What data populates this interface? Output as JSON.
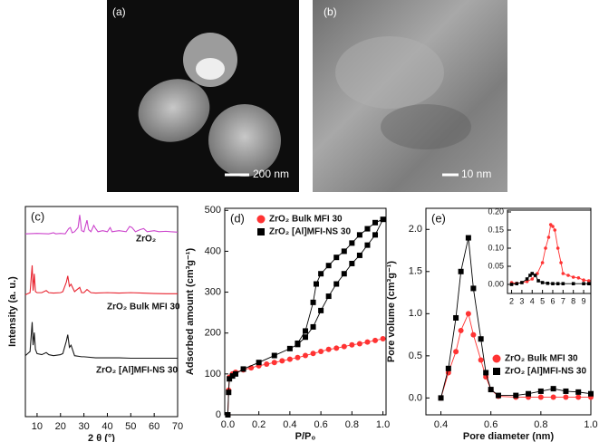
{
  "images": [
    {
      "panel_label": "(a)",
      "scale_bar": "200 nm"
    },
    {
      "panel_label": "(b)",
      "scale_bar": "10 nm"
    }
  ],
  "chart_data": [
    {
      "type": "line",
      "panel_label": "(c)",
      "xlabel": "2 θ (°)",
      "ylabel": "Intensity (a. u.)",
      "xlim": [
        5,
        70
      ],
      "ylim": [
        0,
        10
      ],
      "xticks": [
        10,
        20,
        30,
        40,
        50,
        60,
        70
      ],
      "series": [
        {
          "name": "ZrO₂",
          "color": "#cc44cc",
          "x": [
            5,
            10,
            15,
            17,
            18,
            20,
            22,
            23.5,
            24.2,
            25,
            26,
            27.5,
            28.2,
            29,
            30,
            31.3,
            32,
            33,
            34.2,
            35,
            36,
            38,
            40,
            41.2,
            42,
            45,
            48,
            49.5,
            50.5,
            52,
            54,
            55.5,
            57,
            60,
            62,
            65,
            67,
            70
          ],
          "values": [
            8.7,
            8.72,
            8.7,
            8.75,
            8.7,
            8.72,
            8.7,
            8.95,
            9.0,
            8.75,
            8.8,
            9.0,
            9.6,
            8.85,
            8.8,
            9.35,
            8.9,
            8.8,
            9.1,
            8.95,
            8.8,
            8.85,
            8.8,
            9.0,
            8.8,
            8.85,
            8.8,
            9.05,
            9.0,
            8.8,
            8.9,
            8.95,
            8.8,
            8.85,
            8.8,
            8.82,
            8.8,
            8.78
          ]
        },
        {
          "name": "ZrO₂ Bulk MFI 30",
          "color": "#e8232f",
          "x": [
            5,
            6,
            7,
            7.9,
            8.3,
            8.8,
            9.3,
            10,
            12,
            13.9,
            15,
            17,
            20,
            21,
            22.5,
            23.1,
            23.8,
            24.5,
            26,
            28.2,
            29,
            30,
            31.3,
            33,
            35,
            40,
            45,
            50,
            55,
            60,
            65,
            70
          ],
          "values": [
            5.8,
            5.85,
            5.9,
            7.2,
            6.0,
            6.8,
            5.95,
            5.9,
            5.9,
            6.0,
            5.9,
            5.88,
            5.9,
            5.95,
            6.4,
            6.7,
            6.2,
            6.3,
            5.95,
            6.15,
            5.9,
            5.9,
            6.05,
            5.9,
            5.88,
            5.9,
            5.88,
            5.9,
            5.88,
            5.86,
            5.85,
            5.85
          ]
        },
        {
          "name": "ZrO₂ [Al]MFI-NS 30",
          "color": "#1a1a1a",
          "x": [
            5,
            6,
            7,
            7.9,
            8.3,
            8.8,
            9.3,
            10,
            12,
            13.9,
            15,
            17,
            20,
            21,
            22.5,
            23.1,
            23.8,
            24.5,
            26,
            29,
            30,
            35,
            40,
            45,
            50,
            55,
            60,
            65,
            70
          ],
          "values": [
            2.9,
            3.0,
            3.1,
            4.5,
            3.4,
            4.0,
            3.2,
            3.0,
            2.95,
            3.05,
            2.95,
            2.9,
            2.95,
            3.0,
            3.6,
            3.9,
            3.3,
            3.4,
            2.9,
            2.85,
            2.85,
            2.8,
            2.8,
            2.8,
            2.78,
            2.78,
            2.78,
            2.78,
            2.78
          ]
        }
      ]
    },
    {
      "type": "line",
      "panel_label": "(d)",
      "xlabel": "P/P₀",
      "ylabel": "Adsorbed amount (cm³g⁻¹)",
      "xlim": [
        -0.02,
        1.02
      ],
      "ylim": [
        0,
        505
      ],
      "legend": "upper left",
      "xticks": [
        {
          "value": 0,
          "label": "0.0"
        },
        0.2,
        0.4,
        0.6,
        0.8,
        {
          "value": 1,
          "label": "1.0"
        }
      ],
      "yticks": [
        0,
        100,
        200,
        300,
        400,
        500
      ],
      "series": [
        {
          "name": "ZrO₂ Bulk MFI 30",
          "color": "#ff3333",
          "marker": "circle",
          "x": [
            0,
            0.005,
            0.01,
            0.03,
            0.05,
            0.1,
            0.15,
            0.2,
            0.25,
            0.3,
            0.35,
            0.4,
            0.45,
            0.5,
            0.55,
            0.6,
            0.65,
            0.7,
            0.75,
            0.8,
            0.85,
            0.9,
            0.95,
            1.0
          ],
          "values": [
            0,
            60,
            92,
            100,
            104,
            110,
            115,
            120,
            124,
            128,
            132,
            136,
            140,
            145,
            150,
            155,
            160,
            163,
            167,
            171,
            174,
            178,
            182,
            186
          ]
        },
        {
          "name": "ZrO₂ [Al]MFI-NS 30",
          "color": "#000000",
          "marker": "square",
          "x": [
            0,
            0.005,
            0.01,
            0.03,
            0.05,
            0.1,
            0.2,
            0.3,
            0.4,
            0.45,
            0.5,
            0.55,
            0.6,
            0.65,
            0.7,
            0.75,
            0.8,
            0.85,
            0.9,
            0.95,
            1.0,
            0.95,
            0.9,
            0.85,
            0.8,
            0.75,
            0.7,
            0.65,
            0.6,
            0.57,
            0.55,
            0.5,
            0.45
          ],
          "values": [
            0,
            55,
            88,
            95,
            100,
            112,
            128,
            145,
            162,
            172,
            190,
            215,
            255,
            290,
            320,
            345,
            370,
            390,
            415,
            440,
            478,
            470,
            455,
            440,
            420,
            400,
            385,
            365,
            345,
            320,
            275,
            205,
            175
          ]
        }
      ]
    },
    {
      "type": "line",
      "panel_label": "(e)",
      "xlabel": "Pore diameter (nm)",
      "ylabel": "Pore volume (cm³g⁻¹)",
      "xlim": [
        0.34,
        1.0
      ],
      "ylim": [
        -0.2,
        2.25
      ],
      "legend": "lower right",
      "xticks": [
        0.4,
        0.6,
        0.8,
        {
          "value": 1,
          "label": "1.0"
        }
      ],
      "yticks": [
        {
          "value": 0,
          "label": "0.0"
        },
        0.5,
        {
          "value": 1,
          "label": "1.0"
        },
        1.5,
        {
          "value": 2,
          "label": "2.0"
        }
      ],
      "series": [
        {
          "name": "ZrO₂ Bulk MFI 30",
          "color": "#ff3333",
          "marker": "circle",
          "x": [
            0.4,
            0.43,
            0.46,
            0.48,
            0.51,
            0.53,
            0.56,
            0.58,
            0.6,
            0.63,
            0.7,
            0.75,
            0.8,
            0.85,
            0.9,
            0.95,
            1.0
          ],
          "values": [
            0,
            0.3,
            0.55,
            0.8,
            1.0,
            0.75,
            0.45,
            0.25,
            0.1,
            0.02,
            0.01,
            0.01,
            0.01,
            0.01,
            0.01,
            0.01,
            0.01
          ]
        },
        {
          "name": "ZrO₂ [Al]MFI-NS 30",
          "color": "#000000",
          "marker": "square",
          "x": [
            0.4,
            0.43,
            0.46,
            0.48,
            0.51,
            0.53,
            0.56,
            0.58,
            0.6,
            0.63,
            0.7,
            0.75,
            0.8,
            0.85,
            0.9,
            0.95,
            1.0
          ],
          "values": [
            0,
            0.35,
            0.95,
            1.5,
            1.9,
            1.3,
            0.7,
            0.3,
            0.1,
            0.03,
            0.03,
            0.05,
            0.08,
            0.11,
            0.08,
            0.07,
            0.05
          ]
        }
      ]
    },
    {
      "type": "line",
      "xlim": [
        1.6,
        9.7
      ],
      "ylim": [
        -0.025,
        0.205
      ],
      "xticks": [
        2,
        3,
        4,
        5,
        6,
        7,
        8,
        9
      ],
      "yticks": [
        {
          "value": 0,
          "label": "0.00"
        },
        0.05,
        {
          "value": 0.1,
          "label": "0.10"
        },
        0.15,
        {
          "value": 0.2,
          "label": "0.20"
        }
      ],
      "series": [
        {
          "color": "#ff3333",
          "marker": "circle",
          "x": [
            2,
            2.5,
            3,
            3.5,
            4,
            4.5,
            5,
            5.3,
            5.6,
            5.8,
            6,
            6.2,
            6.5,
            6.8,
            7,
            7.5,
            8,
            8.5,
            9,
            9.5
          ],
          "values": [
            0.005,
            0.003,
            0.005,
            0.008,
            0.015,
            0.03,
            0.06,
            0.1,
            0.13,
            0.165,
            0.16,
            0.15,
            0.1,
            0.06,
            0.03,
            0.025,
            0.02,
            0.018,
            0.012,
            0.01
          ]
        },
        {
          "color": "#000000",
          "marker": "square",
          "x": [
            2,
            2.5,
            3,
            3.5,
            3.8,
            4,
            4.3,
            4.6,
            5,
            5.5,
            6,
            6.5,
            7,
            8,
            9,
            9.5
          ],
          "values": [
            0.0,
            0.002,
            0.005,
            0.015,
            0.025,
            0.03,
            0.025,
            0.01,
            0.005,
            0.003,
            0.002,
            0.002,
            0.002,
            0.002,
            0.002,
            0.002
          ]
        }
      ]
    }
  ]
}
